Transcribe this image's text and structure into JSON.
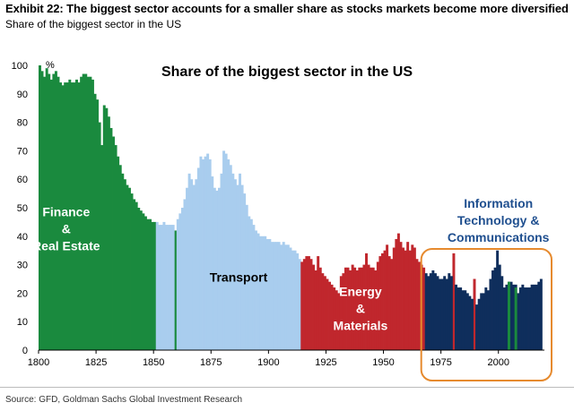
{
  "header": {
    "title": "Exhibit 22: The biggest sector accounts for a smaller share as stocks markets become more diversified",
    "subtitle": "Share of the biggest sector in the US"
  },
  "source": "Source: GFD, Goldman Sachs Global Investment Research",
  "chart_data": {
    "type": "bar",
    "title": "Share of the biggest sector in the US",
    "ylabel": "%",
    "xlabel": "",
    "xlim": [
      1800,
      2020
    ],
    "ylim": [
      0,
      100
    ],
    "grid": false,
    "x_ticks": [
      1800,
      1825,
      1850,
      1875,
      1900,
      1925,
      1950,
      1975,
      2000
    ],
    "y_ticks": [
      0,
      10,
      20,
      30,
      40,
      50,
      60,
      70,
      80,
      90,
      100
    ],
    "colors": {
      "finance": "#1a8a3e",
      "transport": "#a9cdee",
      "energy": "#c0272d",
      "tech": "#0f2e5c",
      "highlight_box": "#e68a2e"
    },
    "sector_labels": [
      {
        "lines": [
          "Finance",
          "&",
          "Real Estate"
        ],
        "color": "#ffffff",
        "x": 1812,
        "y": 47
      },
      {
        "lines": [
          "Transport"
        ],
        "color": "#000000",
        "x": 1887,
        "y": 24
      },
      {
        "lines": [
          "Energy",
          "&",
          "Materials"
        ],
        "color": "#ffffff",
        "x": 1940,
        "y": 19
      },
      {
        "lines": [
          "Information",
          "Technology &",
          "Communications"
        ],
        "color": "#1f4f8f",
        "x": 2000,
        "y": 50
      }
    ],
    "highlight_from": 1968,
    "series": [
      {
        "sector": "Finance & Real Estate",
        "color": "#1a8a3e",
        "x": [
          1800,
          1801,
          1802,
          1803,
          1804,
          1805,
          1806,
          1807,
          1808,
          1809,
          1810,
          1811,
          1812,
          1813,
          1814,
          1815,
          1816,
          1817,
          1818,
          1819,
          1820,
          1821,
          1822,
          1823,
          1824,
          1825,
          1826,
          1827,
          1828,
          1829,
          1830,
          1831,
          1832,
          1833,
          1834,
          1835,
          1836,
          1837,
          1838,
          1839,
          1840,
          1841,
          1842,
          1843,
          1844,
          1845,
          1846,
          1847,
          1848,
          1849,
          1850,
          1859
        ],
        "values": [
          100,
          98,
          96,
          99,
          97,
          95,
          97,
          98,
          96,
          94,
          93,
          94,
          94,
          95,
          94,
          94,
          95,
          94,
          96,
          97,
          97,
          96,
          96,
          95,
          90,
          88,
          80,
          72,
          86,
          85,
          82,
          78,
          75,
          72,
          68,
          65,
          62,
          60,
          58,
          57,
          55,
          53,
          52,
          50,
          49,
          48,
          47,
          46,
          46,
          45,
          45,
          42
        ]
      },
      {
        "sector": "Transport",
        "color": "#a9cdee",
        "x": [
          1851,
          1852,
          1853,
          1854,
          1855,
          1856,
          1857,
          1858,
          1860,
          1861,
          1862,
          1863,
          1864,
          1865,
          1866,
          1867,
          1868,
          1869,
          1870,
          1871,
          1872,
          1873,
          1874,
          1875,
          1876,
          1877,
          1878,
          1879,
          1880,
          1881,
          1882,
          1883,
          1884,
          1885,
          1886,
          1887,
          1888,
          1889,
          1890,
          1891,
          1892,
          1893,
          1894,
          1895,
          1896,
          1897,
          1898,
          1899,
          1900,
          1901,
          1902,
          1903,
          1904,
          1905,
          1906,
          1907,
          1908,
          1909,
          1910,
          1911,
          1912,
          1913
        ],
        "values": [
          45,
          44,
          44,
          45,
          44,
          44,
          44,
          44,
          46,
          48,
          50,
          53,
          57,
          62,
          60,
          58,
          60,
          64,
          68,
          67,
          68,
          69,
          67,
          61,
          57,
          56,
          57,
          62,
          70,
          69,
          67,
          65,
          62,
          60,
          58,
          62,
          58,
          55,
          51,
          47,
          46,
          44,
          42,
          41,
          40,
          40,
          40,
          39,
          39,
          38,
          38,
          38,
          38,
          37,
          38,
          37,
          37,
          36,
          35,
          35,
          34,
          32
        ]
      },
      {
        "sector": "Energy & Materials",
        "color": "#c0272d",
        "x": [
          1914,
          1915,
          1916,
          1917,
          1918,
          1919,
          1920,
          1921,
          1922,
          1923,
          1924,
          1925,
          1926,
          1927,
          1928,
          1929,
          1930,
          1931,
          1932,
          1933,
          1934,
          1935,
          1936,
          1937,
          1938,
          1939,
          1940,
          1941,
          1942,
          1943,
          1944,
          1945,
          1946,
          1947,
          1948,
          1949,
          1950,
          1951,
          1952,
          1953,
          1954,
          1955,
          1956,
          1957,
          1958,
          1959,
          1960,
          1961,
          1962,
          1963,
          1964,
          1965,
          1966,
          1967,
          1980,
          1989
        ],
        "values": [
          31,
          32,
          33,
          33,
          32,
          30,
          28,
          33,
          29,
          27,
          26,
          25,
          24,
          23,
          22,
          21,
          20,
          26,
          27,
          29,
          29,
          28,
          30,
          29,
          28,
          29,
          29,
          30,
          34,
          30,
          29,
          29,
          28,
          31,
          33,
          34,
          35,
          37,
          33,
          32,
          36,
          39,
          41,
          38,
          36,
          35,
          38,
          35,
          37,
          36,
          32,
          31,
          30,
          29,
          34,
          25
        ]
      },
      {
        "sector": "Information Technology & Communications",
        "color": "#0f2e5c",
        "x": [
          1968,
          1969,
          1970,
          1971,
          1972,
          1973,
          1974,
          1975,
          1976,
          1977,
          1978,
          1979,
          1981,
          1982,
          1983,
          1984,
          1985,
          1986,
          1987,
          1988,
          1990,
          1991,
          1992,
          1993,
          1994,
          1995,
          1996,
          1997,
          1998,
          1999,
          2000,
          2001,
          2002,
          2003,
          2004,
          2005,
          2006,
          2007,
          2008,
          2009,
          2010,
          2011,
          2012,
          2013,
          2014,
          2015,
          2016,
          2017,
          2018
        ],
        "values": [
          27,
          26,
          27,
          28,
          27,
          26,
          25,
          25,
          26,
          25,
          27,
          26,
          23,
          22,
          22,
          21,
          21,
          20,
          19,
          18,
          16,
          18,
          20,
          20,
          22,
          21,
          25,
          28,
          29,
          35,
          30,
          26,
          22,
          23,
          24,
          24,
          23,
          23,
          20,
          22,
          23,
          22,
          22,
          22,
          23,
          23,
          23,
          24,
          25
        ]
      },
      {
        "sector": "Finance (later years)",
        "color": "#1a8a3e",
        "x": [
          2004,
          2007
        ],
        "values": [
          24,
          22
        ]
      }
    ]
  }
}
